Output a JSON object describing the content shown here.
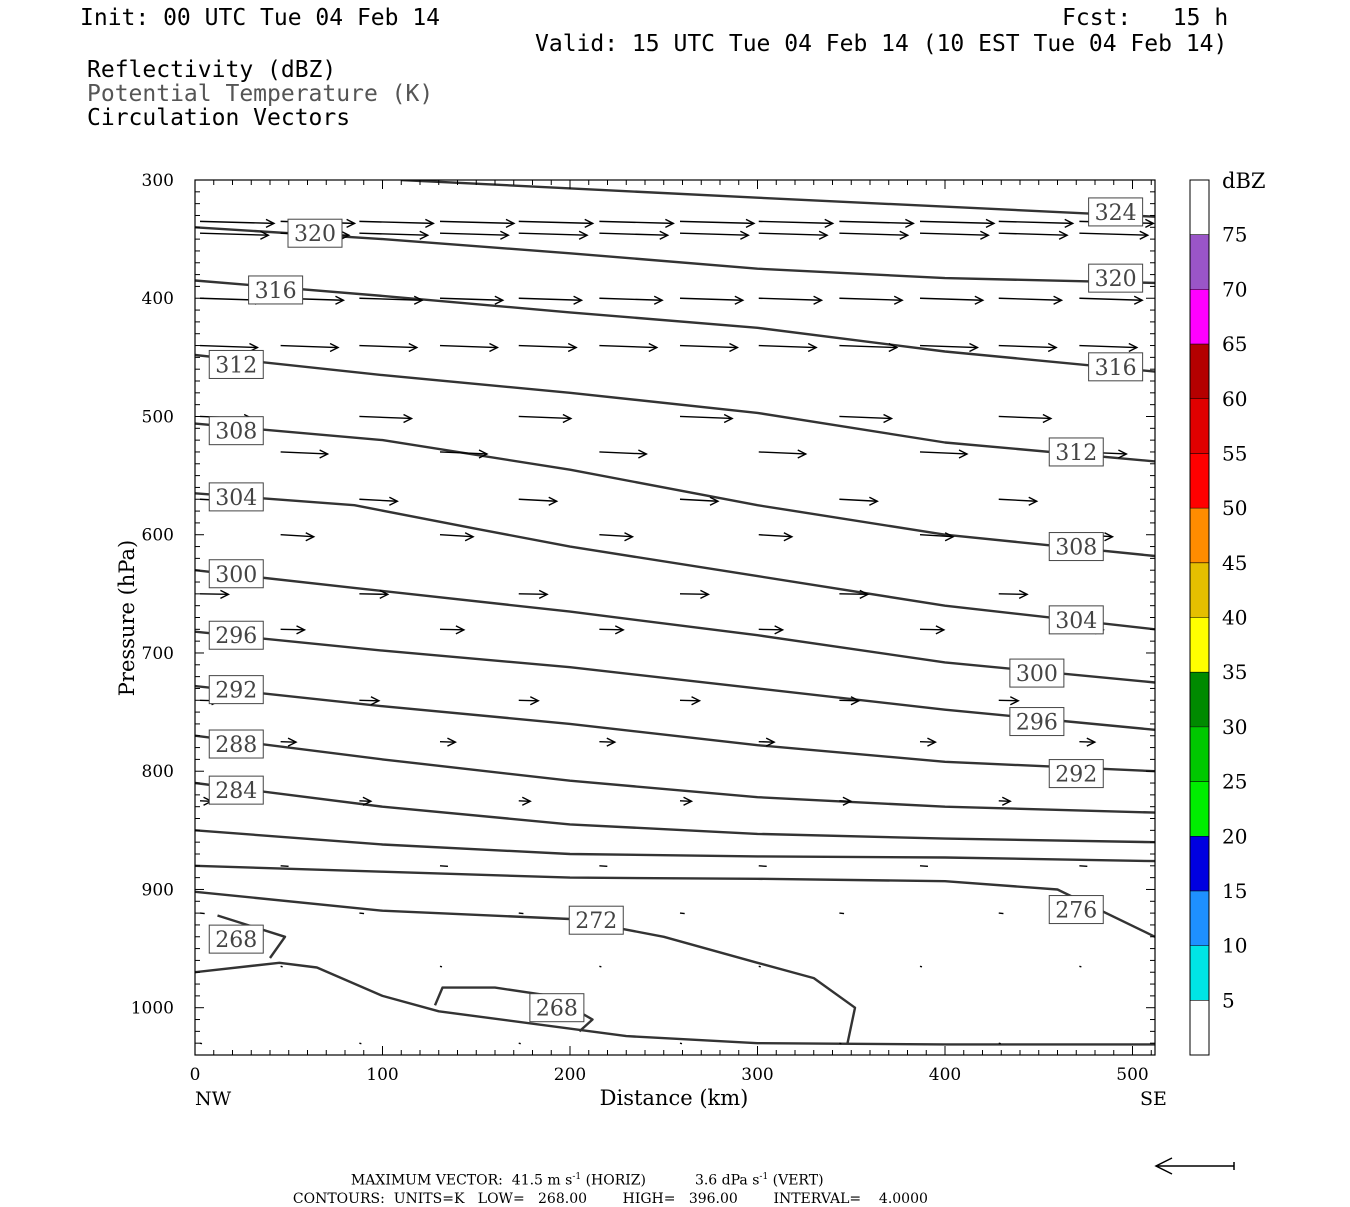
{
  "header": {
    "init": "Init: 00 UTC Tue 04 Feb 14",
    "fcst": "Fcst:   15 h",
    "valid": "Valid: 15 UTC Tue 04 Feb 14 (10 EST Tue 04 Feb 14)",
    "field1": "Reflectivity (dBZ)",
    "field2": "Potential Temperature (K)",
    "field3": "Circulation Vectors"
  },
  "footer": {
    "max_vector_label": "MAXIMUM VECTOR:",
    "max_horiz_value": "41.5",
    "horiz_unit": "m s",
    "horiz_tag": "(HORIZ)",
    "max_vert_value": "3.6",
    "vert_unit": "dPa s",
    "vert_tag": "(VERT)",
    "exponent": "-1",
    "contours_label": "CONTOURS:",
    "units": "UNITS=K",
    "low": "LOW=   268.00",
    "high": "HIGH=   396.00",
    "interval": "INTERVAL=    4.0000"
  },
  "chart_data": {
    "type": "cross-section contour",
    "xlabel": "Distance (km)",
    "ylabel": "Pressure (hPa)",
    "xlim": [
      0,
      512
    ],
    "ylim": [
      300,
      1040
    ],
    "x_ticks": [
      "0",
      "100",
      "200",
      "300",
      "400",
      "500"
    ],
    "y_ticks": [
      "300",
      "400",
      "500",
      "600",
      "700",
      "800",
      "900",
      "1000"
    ],
    "endpoint_left": "NW",
    "endpoint_right": "SE",
    "colorbar": {
      "title": "dBZ",
      "levels": [
        "5",
        "10",
        "15",
        "20",
        "25",
        "30",
        "35",
        "40",
        "45",
        "50",
        "55",
        "60",
        "65",
        "70",
        "75"
      ],
      "colors": [
        "#ffffff",
        "#00e5e5",
        "#1e90ff",
        "#0000e0",
        "#00ee00",
        "#00c800",
        "#008a00",
        "#ffff00",
        "#e5bf00",
        "#ff8c00",
        "#ff0000",
        "#e00000",
        "#b40000",
        "#ff00ff",
        "#9a55c8",
        "#ffffff"
      ]
    },
    "contours": [
      {
        "level": 324,
        "points": [
          [
            110,
            300
          ],
          [
            300,
            315
          ],
          [
            512,
            331
          ]
        ]
      },
      {
        "level": 320,
        "points": [
          [
            0,
            340
          ],
          [
            100,
            350
          ],
          [
            200,
            362
          ],
          [
            300,
            375
          ],
          [
            400,
            383
          ],
          [
            512,
            387
          ]
        ]
      },
      {
        "level": 316,
        "points": [
          [
            0,
            385
          ],
          [
            100,
            398
          ],
          [
            200,
            412
          ],
          [
            300,
            425
          ],
          [
            400,
            445
          ],
          [
            512,
            462
          ]
        ]
      },
      {
        "level": 312,
        "points": [
          [
            0,
            448
          ],
          [
            100,
            465
          ],
          [
            200,
            480
          ],
          [
            300,
            497
          ],
          [
            400,
            522
          ],
          [
            512,
            538
          ]
        ]
      },
      {
        "level": 308,
        "points": [
          [
            0,
            506
          ],
          [
            100,
            520
          ],
          [
            200,
            545
          ],
          [
            300,
            575
          ],
          [
            400,
            600
          ],
          [
            512,
            618
          ]
        ]
      },
      {
        "level": 304,
        "points": [
          [
            0,
            565
          ],
          [
            85,
            575
          ],
          [
            150,
            595
          ],
          [
            200,
            610
          ],
          [
            300,
            635
          ],
          [
            400,
            660
          ],
          [
            512,
            680
          ]
        ]
      },
      {
        "level": 300,
        "points": [
          [
            0,
            630
          ],
          [
            85,
            645
          ],
          [
            200,
            665
          ],
          [
            300,
            685
          ],
          [
            400,
            708
          ],
          [
            512,
            725
          ]
        ]
      },
      {
        "level": 296,
        "points": [
          [
            0,
            682
          ],
          [
            100,
            698
          ],
          [
            200,
            712
          ],
          [
            300,
            730
          ],
          [
            400,
            748
          ],
          [
            512,
            765
          ]
        ]
      },
      {
        "level": 292,
        "points": [
          [
            0,
            728
          ],
          [
            100,
            745
          ],
          [
            200,
            760
          ],
          [
            300,
            778
          ],
          [
            400,
            792
          ],
          [
            512,
            800
          ]
        ]
      },
      {
        "level": 288,
        "points": [
          [
            0,
            770
          ],
          [
            100,
            790
          ],
          [
            200,
            808
          ],
          [
            300,
            822
          ],
          [
            400,
            830
          ],
          [
            512,
            835
          ]
        ]
      },
      {
        "level": 284,
        "points": [
          [
            0,
            810
          ],
          [
            100,
            830
          ],
          [
            200,
            845
          ],
          [
            300,
            853
          ],
          [
            400,
            857
          ],
          [
            512,
            860
          ]
        ]
      },
      {
        "level": 280,
        "points": [
          [
            0,
            850
          ],
          [
            100,
            862
          ],
          [
            200,
            870
          ],
          [
            300,
            872
          ],
          [
            400,
            873
          ],
          [
            512,
            876
          ]
        ]
      },
      {
        "level": 276,
        "points": [
          [
            0,
            880
          ],
          [
            100,
            885
          ],
          [
            200,
            890
          ],
          [
            300,
            891
          ],
          [
            400,
            893
          ],
          [
            460,
            900
          ],
          [
            512,
            940
          ]
        ]
      },
      {
        "level": 272,
        "points": [
          [
            0,
            902
          ],
          [
            100,
            918
          ],
          [
            200,
            925
          ],
          [
            250,
            940
          ],
          [
            300,
            962
          ],
          [
            330,
            975
          ],
          [
            352,
            1000
          ],
          [
            348,
            1030
          ]
        ]
      },
      {
        "level": 268,
        "points": [
          [
            0,
            970
          ],
          [
            45,
            962
          ],
          [
            65,
            966
          ],
          [
            100,
            990
          ],
          [
            130,
            1003
          ],
          [
            230,
            1024
          ],
          [
            300,
            1030
          ],
          [
            400,
            1031
          ],
          [
            512,
            1031
          ]
        ]
      },
      {
        "level": 268,
        "points": [
          [
            12,
            922
          ],
          [
            48,
            940
          ],
          [
            40,
            958
          ]
        ]
      },
      {
        "level": 268,
        "points": [
          [
            128,
            998
          ],
          [
            132,
            983
          ],
          [
            160,
            983
          ],
          [
            190,
            990
          ],
          [
            212,
            1010
          ],
          [
            205,
            1020
          ]
        ]
      }
    ],
    "contour_labels": [
      {
        "text": "324",
        "x": 491,
        "p": 327
      },
      {
        "text": "320",
        "x": 64,
        "p": 345
      },
      {
        "text": "320",
        "x": 491,
        "p": 383
      },
      {
        "text": "316",
        "x": 43,
        "p": 393
      },
      {
        "text": "316",
        "x": 491,
        "p": 458
      },
      {
        "text": "312",
        "x": 22,
        "p": 456
      },
      {
        "text": "312",
        "x": 470,
        "p": 530
      },
      {
        "text": "308",
        "x": 22,
        "p": 512
      },
      {
        "text": "308",
        "x": 470,
        "p": 610
      },
      {
        "text": "304",
        "x": 22,
        "p": 568
      },
      {
        "text": "304",
        "x": 470,
        "p": 672
      },
      {
        "text": "300",
        "x": 22,
        "p": 633
      },
      {
        "text": "300",
        "x": 449,
        "p": 717
      },
      {
        "text": "296",
        "x": 22,
        "p": 685
      },
      {
        "text": "296",
        "x": 449,
        "p": 758
      },
      {
        "text": "292",
        "x": 22,
        "p": 731
      },
      {
        "text": "292",
        "x": 470,
        "p": 802
      },
      {
        "text": "288",
        "x": 22,
        "p": 777
      },
      {
        "text": "284",
        "x": 22,
        "p": 816
      },
      {
        "text": "276",
        "x": 470,
        "p": 917
      },
      {
        "text": "272",
        "x": 214,
        "p": 926
      },
      {
        "text": "268",
        "x": 22,
        "p": 942
      },
      {
        "text": "268",
        "x": 193,
        "p": 1000
      }
    ],
    "vectors": {
      "pressures": [
        335,
        345,
        400,
        440,
        500,
        530,
        570,
        600,
        650,
        680,
        740,
        775,
        825,
        880,
        920,
        965,
        1030
      ],
      "columns_km": [
        0,
        43,
        85,
        128,
        170,
        213,
        256,
        298,
        341,
        384,
        426,
        469
      ],
      "max_horiz_ms": 41.5
    }
  }
}
